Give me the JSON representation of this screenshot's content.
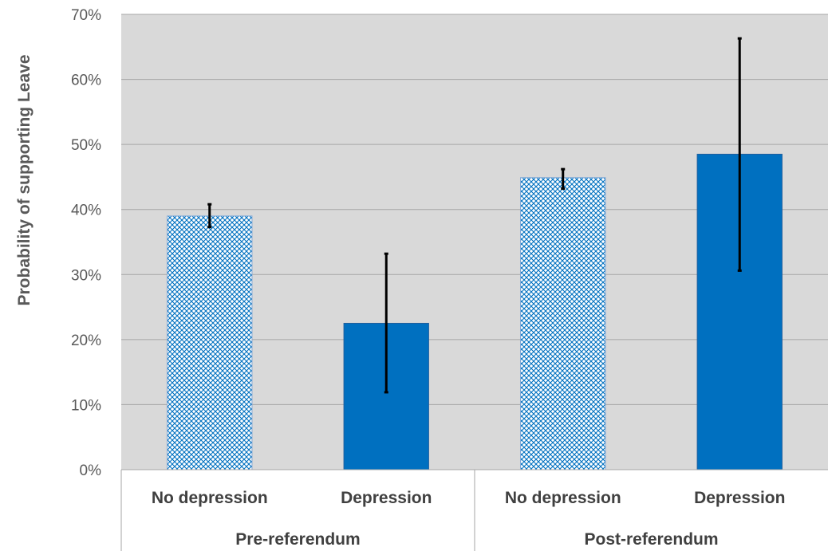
{
  "chart_data": {
    "type": "bar",
    "ylabel": "Probability of supporting Leave",
    "ylim": [
      0,
      0.7
    ],
    "yticks": [
      "0%",
      "10%",
      "20%",
      "30%",
      "40%",
      "50%",
      "60%",
      "70%"
    ],
    "grid": true,
    "groups": [
      {
        "label": "Pre-referendum",
        "bars": [
          {
            "label": "No depression",
            "value": 0.39,
            "err_low": 0.373,
            "err_high": 0.408,
            "fill": "pattern"
          },
          {
            "label": "Depression",
            "value": 0.225,
            "err_low": 0.119,
            "err_high": 0.332,
            "fill": "solid"
          }
        ]
      },
      {
        "label": "Post-referendum",
        "bars": [
          {
            "label": "No depression",
            "value": 0.449,
            "err_low": 0.432,
            "err_high": 0.462,
            "fill": "pattern"
          },
          {
            "label": "Depression",
            "value": 0.485,
            "err_low": 0.306,
            "err_high": 0.663,
            "fill": "solid"
          }
        ]
      }
    ],
    "colors": {
      "bar": "#0070c0",
      "plot_bg": "#d9d9d9",
      "grid": "#a6a6a6",
      "error": "#000000"
    }
  }
}
